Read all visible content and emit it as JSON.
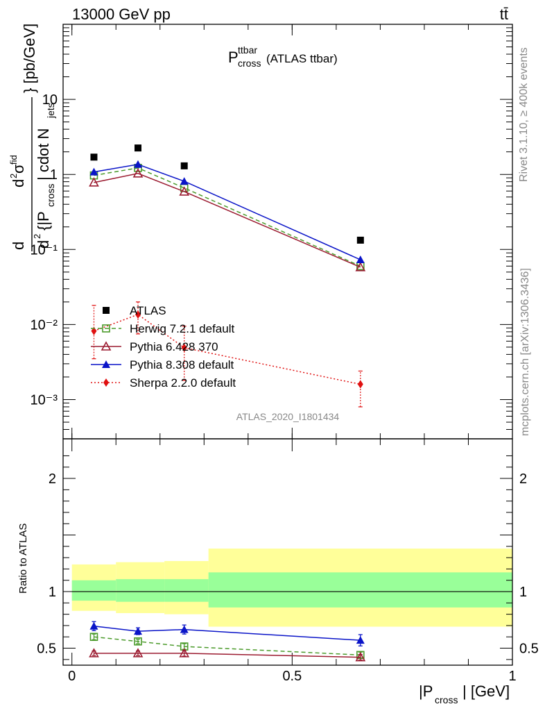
{
  "header": {
    "energy_label": "13000 GeV pp",
    "process_label": "tt̄"
  },
  "plot_title": {
    "main": "P",
    "sup": "ttbar",
    "sub": "cross",
    "suffix": "(ATLAS ttbar)"
  },
  "side_labels": {
    "rivet": "Rivet 3.1.10, ≥ 400k events",
    "mcplots": "mcplots.cern.ch [arXiv:1306.3436]"
  },
  "analysis_id": "ATLAS_2020_I1801434",
  "y_axis_label": {
    "numerator": "d²σᶠᴵᵈ",
    "denominator": "d² {|P_cross| cdot N_jets} [pb/GeV]",
    "part_d": "d",
    "part_d2": "d",
    "part_sigma": "σ",
    "part_fid": "fid",
    "part_brace": "{|P",
    "part_cross": "cross",
    "part_cdot": "| cdot N",
    "part_jets": "jets",
    "part_units": "} [pb/GeV]"
  },
  "ratio_axis_label": "Ratio to ATLAS",
  "x_axis_label": {
    "main": "|P",
    "sub": "cross",
    "suffix": "| [GeV]"
  },
  "chart_data": {
    "type": "scatter",
    "main_panel": {
      "yscale": "log",
      "ylim": [
        0.0003,
        100
      ],
      "xlim": [
        -0.02,
        1.0
      ],
      "y_tick_labels": [
        "10⁻³",
        "10⁻²",
        "10⁻¹",
        "1",
        "10"
      ],
      "series": [
        {
          "name": "ATLAS",
          "color": "#000000",
          "marker": "square",
          "line": "none",
          "points": [
            [
              0.05,
              1.7
            ],
            [
              0.15,
              2.25
            ],
            [
              0.255,
              1.3
            ],
            [
              0.655,
              0.133
            ]
          ]
        },
        {
          "name": "Herwig 7.2.1 default",
          "color": "#4a9a2a",
          "marker": "open-square",
          "line": "dashed",
          "points": [
            [
              0.05,
              0.97
            ],
            [
              0.15,
              1.22
            ],
            [
              0.255,
              0.66
            ],
            [
              0.655,
              0.06
            ]
          ]
        },
        {
          "name": "Pythia 6.428 370",
          "color": "#9b1b30",
          "marker": "open-triangle",
          "line": "solid",
          "points": [
            [
              0.05,
              0.78
            ],
            [
              0.15,
              1.03
            ],
            [
              0.255,
              0.59
            ],
            [
              0.655,
              0.058
            ]
          ]
        },
        {
          "name": "Pythia 8.308 default",
          "color": "#0a14c8",
          "marker": "triangle",
          "line": "solid",
          "points": [
            [
              0.05,
              1.08
            ],
            [
              0.15,
              1.36
            ],
            [
              0.255,
              0.81
            ],
            [
              0.655,
              0.073
            ]
          ]
        },
        {
          "name": "Sherpa 2.2.0 default",
          "color": "#e01010",
          "marker": "diamond",
          "line": "dotted",
          "points": [
            [
              0.05,
              0.0082,
              0.0035,
              0.018
            ],
            [
              0.15,
              0.0136,
              0.0075,
              0.02
            ],
            [
              0.255,
              0.0049,
              0.0018,
              0.0095
            ],
            [
              0.655,
              0.0016,
              0.0008,
              0.0024
            ]
          ]
        }
      ]
    },
    "ratio_panel": {
      "ylim": [
        0.35,
        2.35
      ],
      "xlim": [
        -0.02,
        1.0
      ],
      "y_ticks": [
        0.5,
        1,
        2
      ],
      "y_tick_labels": [
        "0.5",
        "1",
        "2"
      ],
      "x_tick_labels": [
        "0",
        "0.5",
        "1"
      ],
      "x_ticks": [
        0,
        0.5,
        1
      ],
      "bands": [
        {
          "x0": 0.0,
          "x1": 0.1,
          "inner": [
            0.92,
            1.1
          ],
          "outer": [
            0.83,
            1.24
          ]
        },
        {
          "x0": 0.1,
          "x1": 0.21,
          "inner": [
            0.91,
            1.11
          ],
          "outer": [
            0.81,
            1.26
          ]
        },
        {
          "x0": 0.21,
          "x1": 0.31,
          "inner": [
            0.91,
            1.11
          ],
          "outer": [
            0.8,
            1.27
          ]
        },
        {
          "x0": 0.31,
          "x1": 1.0,
          "inner": [
            0.86,
            1.17
          ],
          "outer": [
            0.69,
            1.38
          ]
        }
      ],
      "series": [
        {
          "name": "Pythia 8.308 default",
          "color": "#0a14c8",
          "marker": "triangle",
          "line": "solid",
          "points": [
            [
              0.05,
              0.695,
              0.04
            ],
            [
              0.15,
              0.65,
              0.03
            ],
            [
              0.255,
              0.665,
              0.04
            ],
            [
              0.655,
              0.57,
              0.05
            ]
          ]
        },
        {
          "name": "Herwig 7.2.1 default",
          "color": "#4a9a2a",
          "marker": "open-square",
          "line": "dashed",
          "points": [
            [
              0.05,
              0.6,
              0.025
            ],
            [
              0.15,
              0.56,
              0.02
            ],
            [
              0.255,
              0.515,
              0.025
            ],
            [
              0.655,
              0.44,
              0.025
            ]
          ]
        },
        {
          "name": "Pythia 6.428 370",
          "color": "#9b1b30",
          "marker": "open-triangle",
          "line": "solid",
          "points": [
            [
              0.05,
              0.455,
              0.02
            ],
            [
              0.15,
              0.455,
              0.02
            ],
            [
              0.255,
              0.455,
              0.025
            ],
            [
              0.655,
              0.42,
              0.025
            ]
          ]
        }
      ]
    },
    "legend": {
      "position": "lower-left",
      "entries": [
        "ATLAS",
        "Herwig 7.2.1 default",
        "Pythia 6.428 370",
        "Pythia 8.308 default",
        "Sherpa 2.2.0 default"
      ]
    }
  }
}
